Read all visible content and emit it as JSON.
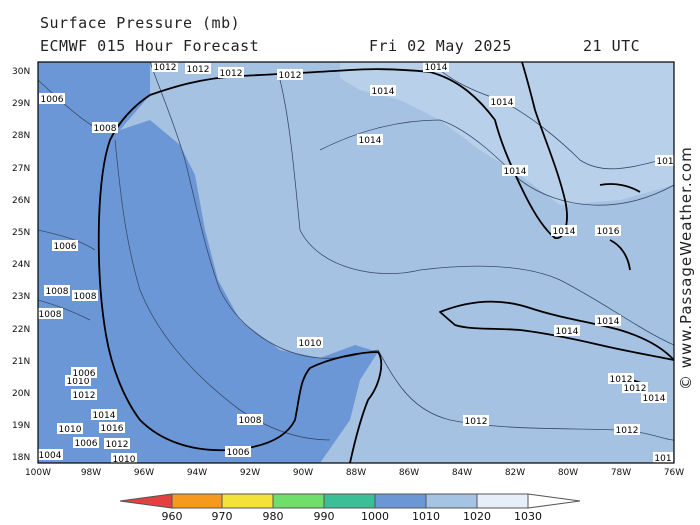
{
  "header": {
    "title": "Surface Pressure (mb)",
    "model": "ECMWF 015 Hour Forecast",
    "date": "Fri 02 May 2025",
    "time": "21 UTC"
  },
  "credit": "© www.PassageWeather.com",
  "y_ticks": [
    "30N",
    "29N",
    "28N",
    "27N",
    "26N",
    "25N",
    "24N",
    "23N",
    "22N",
    "21N",
    "20N",
    "19N",
    "18N"
  ],
  "x_ticks": [
    "100W",
    "98W",
    "96W",
    "94W",
    "92W",
    "90W",
    "88W",
    "86W",
    "84W",
    "82W",
    "80W",
    "78W",
    "76W"
  ],
  "colorbar": {
    "labels": [
      "960",
      "970",
      "980",
      "990",
      "1000",
      "1010",
      "1020",
      "1030"
    ],
    "colors": [
      "#e34141",
      "#f59a1e",
      "#f3e23a",
      "#6fdf6a",
      "#3bbf95",
      "#6c97d6",
      "#a5c3e3",
      "#e6eef9"
    ]
  },
  "contour_labels": [
    {
      "text": "1012"
    },
    {
      "text": "1012"
    },
    {
      "text": "1012"
    },
    {
      "text": "1012"
    },
    {
      "text": "1014"
    },
    {
      "text": "1014"
    },
    {
      "text": "1014"
    },
    {
      "text": "1014"
    },
    {
      "text": "1014"
    },
    {
      "text": "1014"
    },
    {
      "text": "101"
    },
    {
      "text": "1016"
    },
    {
      "text": "1014"
    },
    {
      "text": "1014"
    },
    {
      "text": "1012"
    },
    {
      "text": "1012"
    },
    {
      "text": "1014"
    },
    {
      "text": "1012"
    },
    {
      "text": "1012"
    },
    {
      "text": "101"
    },
    {
      "text": "1010"
    },
    {
      "text": "1008"
    },
    {
      "text": "1006"
    },
    {
      "text": "1006"
    },
    {
      "text": "1010"
    },
    {
      "text": "1008"
    },
    {
      "text": "1006"
    },
    {
      "text": "1008"
    },
    {
      "text": "1008"
    },
    {
      "text": "1006"
    },
    {
      "text": "1012"
    },
    {
      "text": "1010"
    },
    {
      "text": "1014"
    },
    {
      "text": "1016"
    },
    {
      "text": "1012"
    },
    {
      "text": "1010"
    },
    {
      "text": "1006"
    },
    {
      "text": "1004"
    },
    {
      "text": "1008"
    }
  ]
}
